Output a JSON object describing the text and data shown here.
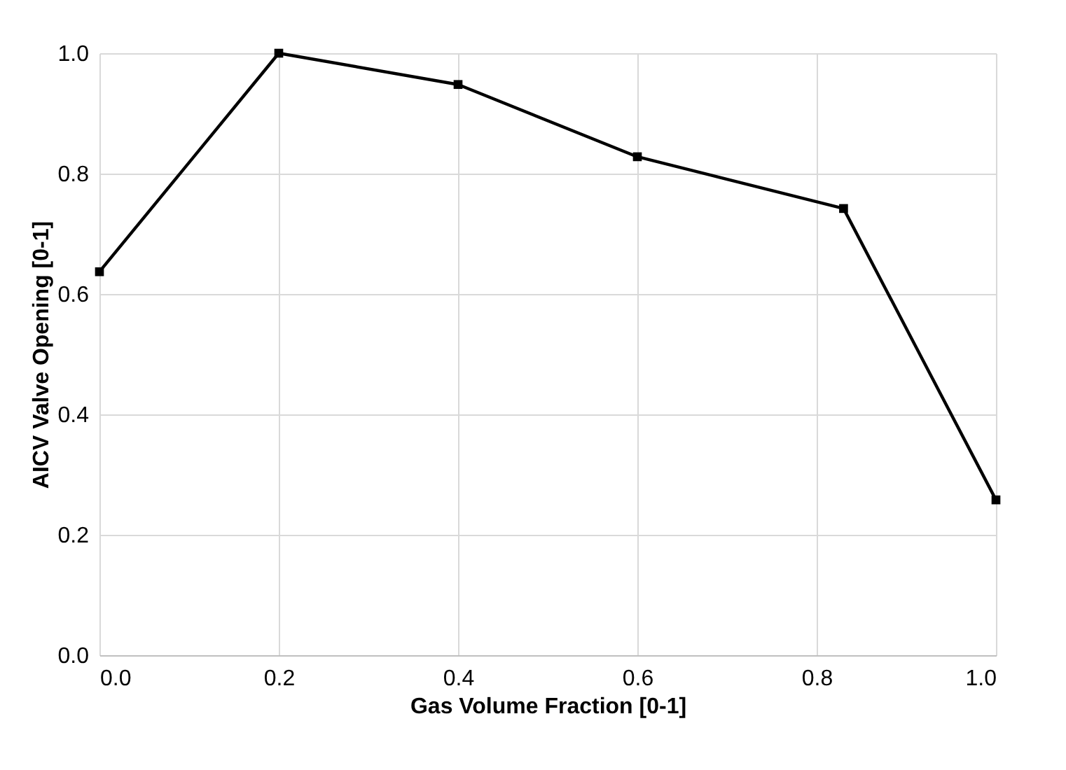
{
  "chart_data": {
    "type": "line",
    "xlabel": "Gas Volume Fraction [0-1]",
    "ylabel": "AICV Valve Opening [0-1]",
    "x": [
      0,
      0.2,
      0.4,
      0.6,
      0.83,
      1.0
    ],
    "series": [
      {
        "color": "#000000",
        "values": [
          0.637,
          1.0,
          0.948,
          0.828,
          0.742,
          0.258
        ]
      }
    ],
    "xlim": [
      0,
      1
    ],
    "xticks": [
      {
        "value": 0,
        "label": "0.0"
      },
      0.2,
      0.4,
      0.6,
      0.8,
      {
        "value": 1,
        "label": "1.0"
      }
    ],
    "ylim": [
      0,
      1
    ],
    "yticks": [
      {
        "value": 0,
        "label": "0.0"
      },
      0.2,
      0.4,
      0.6,
      0.8,
      {
        "value": 1,
        "label": "1.0"
      }
    ],
    "grid": true,
    "marker": "square",
    "line_style": "solid"
  }
}
